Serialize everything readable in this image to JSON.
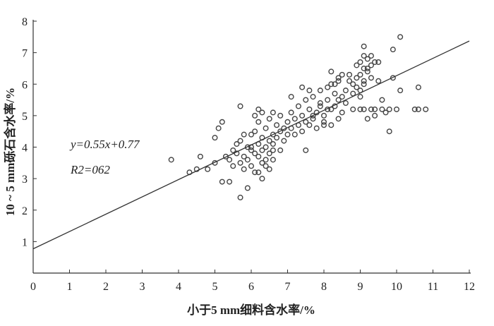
{
  "chart_data": {
    "type": "scatter",
    "title": "",
    "xlabel": "小于5 mm细料含水率/%",
    "ylabel": "10 ~ 5 mm砾石含水率/%",
    "xlim": [
      0,
      12
    ],
    "ylim": [
      0,
      8
    ],
    "xticks": [
      0,
      1,
      2,
      3,
      4,
      5,
      6,
      7,
      8,
      9,
      10,
      11,
      12
    ],
    "yticks": [
      1,
      2,
      3,
      4,
      5,
      6,
      7,
      8
    ],
    "grid": false,
    "fit": {
      "slope": 0.55,
      "intercept": 0.77
    },
    "annotations": {
      "equation": "y=0.55x+0.77",
      "r2": "R2=062"
    },
    "points": {
      "x": [
        3.8,
        4.3,
        4.5,
        4.6,
        4.8,
        5.0,
        5.0,
        5.1,
        5.2,
        5.2,
        5.4,
        5.7,
        5.7,
        5.9,
        6.2,
        6.3,
        6.6,
        7.1,
        7.5,
        8.2,
        8.3,
        9.1,
        9.3,
        10.1,
        9.9,
        9.5,
        10.6,
        10.1,
        9.8,
        10.5,
        10.6,
        10.8,
        10.0,
        9.8,
        9.6,
        9.4,
        9.3,
        9.1,
        9.0,
        8.8,
        9.2,
        9.6,
        9.4,
        9.5,
        9.9,
        9.7,
        5.3,
        5.4,
        5.5,
        5.5,
        5.6,
        5.6,
        5.7,
        5.7,
        5.8,
        5.8,
        5.9,
        5.9,
        6.0,
        6.0,
        6.0,
        6.1,
        6.1,
        6.1,
        6.2,
        6.2,
        6.2,
        6.3,
        6.3,
        6.3,
        6.4,
        6.4,
        6.4,
        6.5,
        6.5,
        6.5,
        6.6,
        6.6,
        6.6,
        6.7,
        6.7,
        6.8,
        6.8,
        6.9,
        6.9,
        7.0,
        7.0,
        6.1,
        6.3,
        6.5,
        6.2,
        6.4,
        5.8,
        6.0,
        6.6,
        6.8,
        7.1,
        7.1,
        7.2,
        7.2,
        7.3,
        7.3,
        7.4,
        7.4,
        7.5,
        7.5,
        7.6,
        7.6,
        7.7,
        7.7,
        7.8,
        7.8,
        7.9,
        7.9,
        8.0,
        8.0,
        8.1,
        8.1,
        8.2,
        8.2,
        8.3,
        8.3,
        8.4,
        8.4,
        8.5,
        8.5,
        7.6,
        7.9,
        8.2,
        7.4,
        8.0,
        8.4,
        7.7,
        8.1,
        8.7,
        8.8,
        8.8,
        8.9,
        8.9,
        9.0,
        9.0,
        9.0,
        9.1,
        9.1,
        9.2,
        9.2,
        9.3,
        8.9,
        9.1,
        9.0,
        8.6,
        8.7,
        9.2,
        9.4,
        9.3,
        9.1,
        8.4,
        8.6,
        8.5
      ],
      "y": [
        3.6,
        3.2,
        3.3,
        3.7,
        3.3,
        3.5,
        4.3,
        4.6,
        4.8,
        2.9,
        2.9,
        2.4,
        5.3,
        2.7,
        5.2,
        3.0,
        5.1,
        5.6,
        3.9,
        6.4,
        6.0,
        7.2,
        6.9,
        7.5,
        7.1,
        6.7,
        5.9,
        5.8,
        4.5,
        5.2,
        5.2,
        5.2,
        5.2,
        5.2,
        5.2,
        5.2,
        5.2,
        5.2,
        5.2,
        5.2,
        4.9,
        5.5,
        5.0,
        6.1,
        6.2,
        5.1,
        3.7,
        3.6,
        3.9,
        3.4,
        3.8,
        4.1,
        3.5,
        4.2,
        3.7,
        3.3,
        4.0,
        3.6,
        3.9,
        4.4,
        3.4,
        3.8,
        4.5,
        3.2,
        4.1,
        3.7,
        4.8,
        4.3,
        3.5,
        3.9,
        4.6,
        4.0,
        3.6,
        4.2,
        3.8,
        4.9,
        4.4,
        3.9,
        4.1,
        4.7,
        4.3,
        4.5,
        3.9,
        4.6,
        4.2,
        4.8,
        4.4,
        5.0,
        5.1,
        3.3,
        3.2,
        3.4,
        4.4,
        4.0,
        3.6,
        5.0,
        4.6,
        5.1,
        4.9,
        4.4,
        5.3,
        4.7,
        4.5,
        5.0,
        4.8,
        5.5,
        5.2,
        4.7,
        4.9,
        5.6,
        5.1,
        4.6,
        5.3,
        5.8,
        5.0,
        4.8,
        5.5,
        5.9,
        5.2,
        4.7,
        5.7,
        5.3,
        6.2,
        4.9,
        5.6,
        5.1,
        5.8,
        5.4,
        6.0,
        5.9,
        4.7,
        6.1,
        5.0,
        5.2,
        6.3,
        5.7,
        6.0,
        6.6,
        5.9,
        6.7,
        6.3,
        5.8,
        6.5,
        6.1,
        6.8,
        6.4,
        6.6,
        6.2,
        6.0,
        5.6,
        5.8,
        6.1,
        6.5,
        6.7,
        6.2,
        6.9,
        5.5,
        5.4,
        6.3
      ]
    }
  }
}
